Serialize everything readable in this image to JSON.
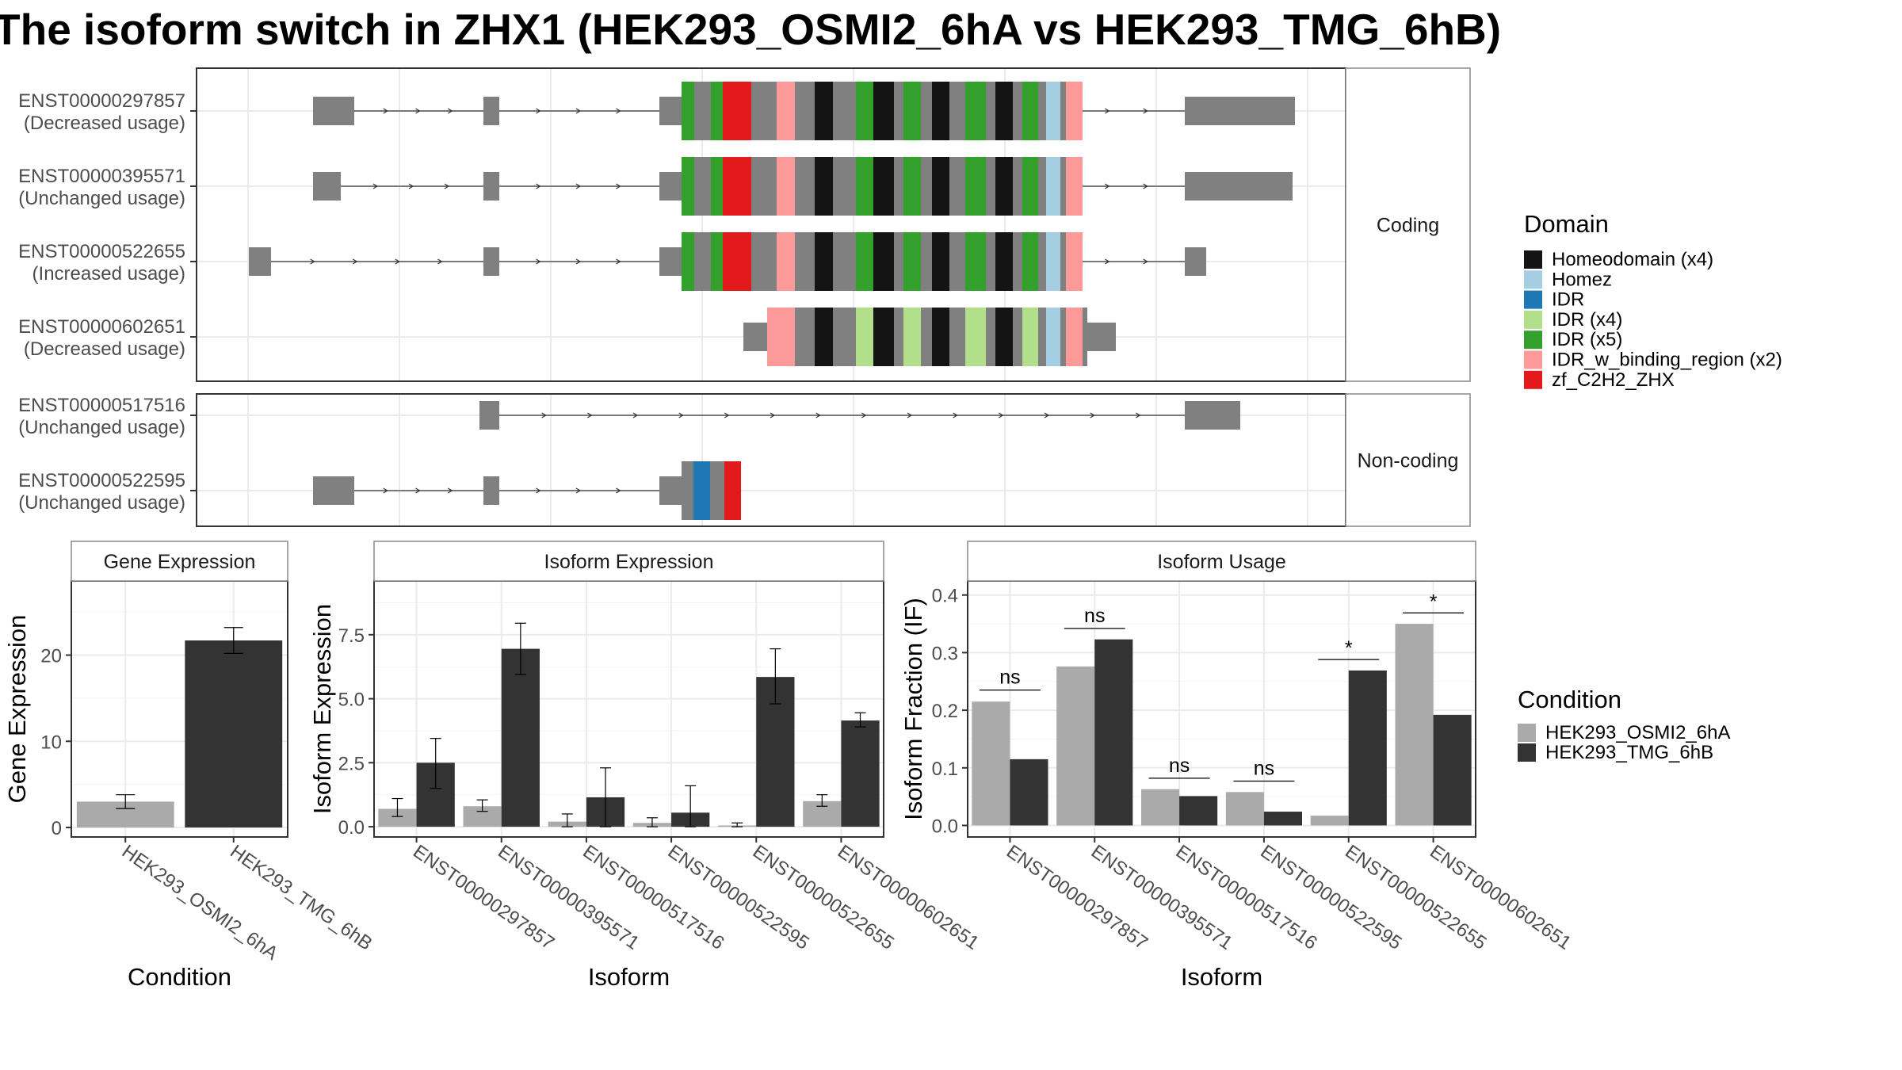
{
  "title": "The isoform switch in ZHX1 (HEK293_OSMI2_6hA vs HEK293_TMG_6hB)",
  "structure": {
    "groups": [
      {
        "label": "Coding",
        "isoforms": [
          {
            "id": "ENST00000297857",
            "usage": "(Decreased usage)"
          },
          {
            "id": "ENST00000395571",
            "usage": "(Unchanged usage)"
          },
          {
            "id": "ENST00000522655",
            "usage": "(Increased usage)"
          },
          {
            "id": "ENST00000602651",
            "usage": "(Decreased usage)"
          }
        ]
      },
      {
        "label": "Non-coding",
        "isoforms": [
          {
            "id": "ENST00000517516",
            "usage": "(Unchanged usage)"
          },
          {
            "id": "ENST00000522595",
            "usage": "(Unchanged usage)"
          }
        ]
      }
    ],
    "domain_legend": {
      "title": "Domain",
      "items": [
        {
          "label": "Homeodomain (x4)",
          "color": "#141414"
        },
        {
          "label": "Homez",
          "color": "#a6cee3"
        },
        {
          "label": "IDR",
          "color": "#1f78b4"
        },
        {
          "label": "IDR (x4)",
          "color": "#b2df8a"
        },
        {
          "label": "IDR (x5)",
          "color": "#33a02c"
        },
        {
          "label": "IDR_w_binding_region (x2)",
          "color": "#fb9a99"
        },
        {
          "label": "zf_C2H2_ZHX",
          "color": "#e31a1c"
        }
      ]
    },
    "colors": {
      "exon": "#808080",
      "intron": "#333333"
    }
  },
  "chart_data": [
    {
      "type": "bar",
      "title": "Gene Expression",
      "xlabel": "Condition",
      "ylabel": "Gene Expression",
      "categories": [
        "HEK293_OSMI2_6hA",
        "HEK293_TMG_6hB"
      ],
      "values": [
        3.0,
        21.7
      ],
      "errors": [
        [
          2.2,
          3.8
        ],
        [
          20.2,
          23.2
        ]
      ],
      "ylim": [
        -1.1,
        28.6
      ],
      "yticks": [
        0,
        10,
        20
      ],
      "colors": [
        "#aaaaaa",
        "#333333"
      ],
      "grid": true
    },
    {
      "type": "bar",
      "title": "Isoform Expression",
      "xlabel": "Isoform",
      "ylabel": "Isoform Expression",
      "categories": [
        "ENST00000297857",
        "ENST00000395571",
        "ENST00000517516",
        "ENST00000522595",
        "ENST00000522655",
        "ENST00000602651"
      ],
      "series": [
        {
          "name": "HEK293_OSMI2_6hA",
          "values": [
            0.7,
            0.8,
            0.2,
            0.15,
            0.05,
            1.0
          ],
          "errors": [
            [
              0.4,
              1.1
            ],
            [
              0.6,
              1.05
            ],
            [
              0.0,
              0.5
            ],
            [
              0.0,
              0.35
            ],
            [
              0.0,
              0.15
            ],
            [
              0.8,
              1.25
            ]
          ]
        },
        {
          "name": "HEK293_TMG_6hB",
          "values": [
            2.5,
            6.95,
            1.15,
            0.55,
            5.85,
            4.15
          ],
          "errors": [
            [
              1.5,
              3.45
            ],
            [
              5.95,
              7.95
            ],
            [
              0.0,
              2.3
            ],
            [
              0.0,
              1.6
            ],
            [
              4.8,
              6.95
            ],
            [
              3.9,
              4.45
            ]
          ]
        }
      ],
      "ylim": [
        -0.4,
        9.6
      ],
      "yticks": [
        0.0,
        2.5,
        5.0,
        7.5
      ],
      "yticklabels": [
        "0.0",
        "2.5",
        "5.0",
        "7.5"
      ],
      "grid": true
    },
    {
      "type": "bar",
      "title": "Isoform Usage",
      "xlabel": "Isoform",
      "ylabel": "Isoform Fraction (IF)",
      "categories": [
        "ENST00000297857",
        "ENST00000395571",
        "ENST00000517516",
        "ENST00000522595",
        "ENST00000522655",
        "ENST00000602651"
      ],
      "series": [
        {
          "name": "HEK293_OSMI2_6hA",
          "values": [
            0.215,
            0.276,
            0.063,
            0.058,
            0.017,
            0.35
          ]
        },
        {
          "name": "HEK293_TMG_6hB",
          "values": [
            0.115,
            0.323,
            0.051,
            0.024,
            0.269,
            0.192
          ]
        }
      ],
      "significance": [
        "ns",
        "ns",
        "ns",
        "ns",
        "*",
        "*"
      ],
      "sig_y": [
        0.235,
        0.342,
        0.082,
        0.077,
        0.288,
        0.369
      ],
      "ylim": [
        -0.02,
        0.4244
      ],
      "yticks": [
        0.0,
        0.1,
        0.2,
        0.3,
        0.4
      ],
      "yticklabels": [
        "0.0",
        "0.1",
        "0.2",
        "0.3",
        "0.4"
      ],
      "grid": true
    }
  ],
  "condition_legend": {
    "title": "Condition",
    "items": [
      {
        "label": "HEK293_OSMI2_6hA",
        "color": "#aaaaaa"
      },
      {
        "label": "HEK293_TMG_6hB",
        "color": "#333333"
      }
    ]
  }
}
